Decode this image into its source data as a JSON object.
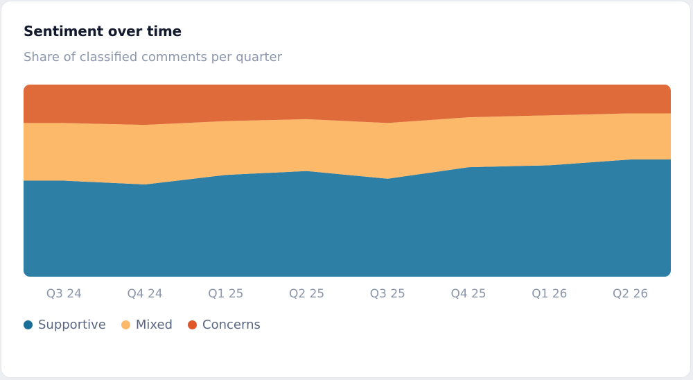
{
  "card": {
    "title": "Sentiment over time",
    "subtitle": "Share of classified comments per quarter"
  },
  "chart_data": {
    "type": "area",
    "stacked": true,
    "normalized": true,
    "categories": [
      "Q3 24",
      "Q4 24",
      "Q1 25",
      "Q2 25",
      "Q3 25",
      "Q4 25",
      "Q1 26",
      "Q2 26"
    ],
    "series": [
      {
        "name": "Supportive",
        "color": "#2e7fa6",
        "values": [
          50,
          48,
          53,
          55,
          51,
          57,
          58,
          61
        ]
      },
      {
        "name": "Mixed",
        "color": "#fdb96a",
        "values": [
          30,
          31,
          28,
          27,
          29,
          26,
          26,
          24
        ]
      },
      {
        "name": "Concerns",
        "color": "#e06b3a",
        "values": [
          20,
          21,
          19,
          18,
          20,
          17,
          16,
          15
        ]
      }
    ],
    "ylim": [
      0,
      100
    ],
    "grid": false,
    "legend_position": "bottom-left",
    "legend_markers": [
      "#1b6e97",
      "#fdb96a",
      "#e0582a"
    ]
  }
}
